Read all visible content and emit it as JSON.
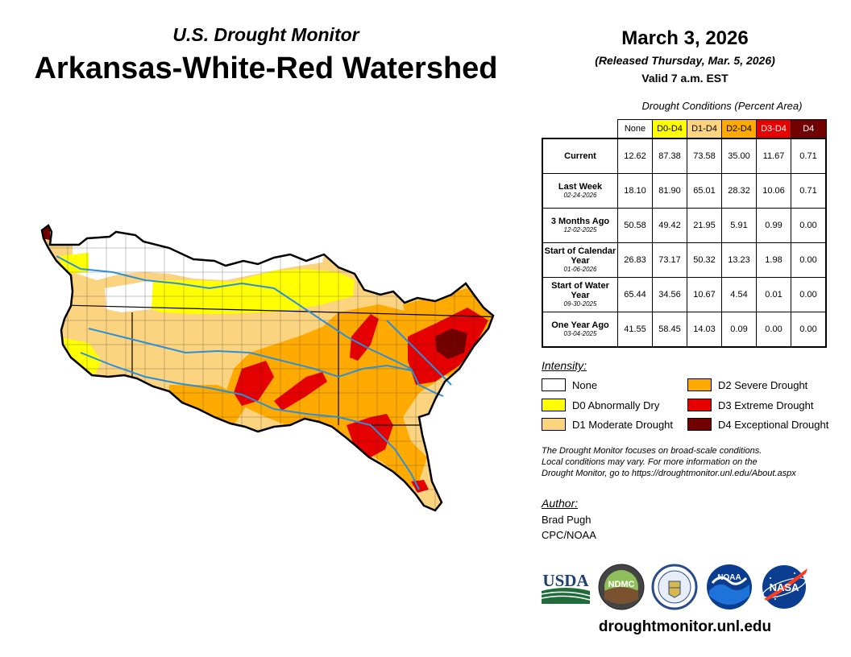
{
  "header": {
    "subtitle": "U.S. Drought Monitor",
    "title": "Arkansas-White-Red Watershed",
    "date": "March 3, 2026",
    "released": "(Released Thursday, Mar. 5, 2026)",
    "valid": "Valid 7 a.m. EST"
  },
  "conditions": {
    "caption": "Drought Conditions (Percent Area)",
    "columns": [
      {
        "label": "None",
        "bg": "#ffffff",
        "fg": "#000000"
      },
      {
        "label": "D0-D4",
        "bg": "#ffff00",
        "fg": "#000000"
      },
      {
        "label": "D1-D4",
        "bg": "#fcd37f",
        "fg": "#000000"
      },
      {
        "label": "D2-D4",
        "bg": "#ffaa00",
        "fg": "#000000"
      },
      {
        "label": "D3-D4",
        "bg": "#e60000",
        "fg": "#ffffff"
      },
      {
        "label": "D4",
        "bg": "#730000",
        "fg": "#ffffff"
      }
    ],
    "rows": [
      {
        "label": "Current",
        "date": "",
        "values": [
          "12.62",
          "87.38",
          "73.58",
          "35.00",
          "11.67",
          "0.71"
        ]
      },
      {
        "label": "Last Week",
        "date": "02-24-2026",
        "values": [
          "18.10",
          "81.90",
          "65.01",
          "28.32",
          "10.06",
          "0.71"
        ]
      },
      {
        "label": "3 Months Ago",
        "date": "12-02-2025",
        "values": [
          "50.58",
          "49.42",
          "21.95",
          "5.91",
          "0.99",
          "0.00"
        ]
      },
      {
        "label": "Start of Calendar Year",
        "date": "01-06-2026",
        "values": [
          "26.83",
          "73.17",
          "50.32",
          "13.23",
          "1.98",
          "0.00"
        ]
      },
      {
        "label": "Start of Water Year",
        "date": "09-30-2025",
        "values": [
          "65.44",
          "34.56",
          "10.67",
          "4.54",
          "0.01",
          "0.00"
        ]
      },
      {
        "label": "One Year Ago",
        "date": "03-04-2025",
        "values": [
          "41.55",
          "58.45",
          "14.03",
          "0.09",
          "0.00",
          "0.00"
        ]
      }
    ]
  },
  "intensity": {
    "title": "Intensity:",
    "items": [
      {
        "label": "None",
        "color": "#ffffff"
      },
      {
        "label": "D0 Abnormally Dry",
        "color": "#ffff00"
      },
      {
        "label": "D1 Moderate Drought",
        "color": "#fcd37f"
      },
      {
        "label": "D2 Severe Drought",
        "color": "#ffaa00"
      },
      {
        "label": "D3 Extreme Drought",
        "color": "#e60000"
      },
      {
        "label": "D4 Exceptional Drought",
        "color": "#730000"
      }
    ]
  },
  "note": {
    "line1": "The Drought Monitor focuses on broad-scale conditions.",
    "line2": "Local conditions may vary. For more information on the",
    "line3": "Drought Monitor, go to https://droughtmonitor.unl.edu/About.aspx"
  },
  "author": {
    "title": "Author:",
    "name": "Brad Pugh",
    "org": "CPC/NOAA"
  },
  "logos": {
    "usda": "USDA",
    "ndmc": "NDMC",
    "noaa": "NOAA",
    "nasa": "NASA"
  },
  "footer": {
    "website": "droughtmonitor.unl.edu"
  },
  "colors": {
    "none": "#ffffff",
    "d0": "#ffff00",
    "d1": "#fcd37f",
    "d2": "#ffaa00",
    "d3": "#e60000",
    "d4": "#730000",
    "river": "#2b8fd9"
  }
}
